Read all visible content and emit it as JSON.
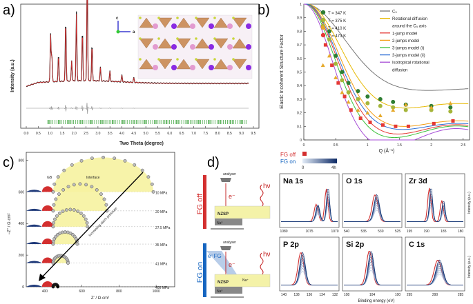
{
  "panel_a": {
    "label": "a)",
    "ylabel": "Intensity (a.u.)",
    "xlabel": "Two Theta (degree)",
    "xticks": [
      "0.0",
      "0.5",
      "1.0",
      "1.5",
      "2.0",
      "2.5",
      "3.0",
      "3.5",
      "4.0",
      "4.5",
      "5.0",
      "5.5",
      "6.0",
      "6.5",
      "7.0",
      "7.5",
      "8.0",
      "8.5",
      "9.0",
      "9.5"
    ],
    "axis_c": "c",
    "axis_a": "a"
  },
  "panel_b": {
    "label": "b)",
    "ylabel": "Elastic Incoherent Structure Factor",
    "xlabel": "Q (Å⁻¹)",
    "yticks": [
      "0",
      "0.1",
      "0.2",
      "0.3",
      "0.4",
      "0.5",
      "0.6",
      "0.7",
      "0.8",
      "0.9",
      "1"
    ],
    "xticks": [
      "0",
      "0.5",
      "1",
      "1.5",
      "2",
      "2.5"
    ],
    "temps": [
      {
        "label": "T = 347 K",
        "color": "#2e7d32"
      },
      {
        "label": "T = 375 K",
        "color": "#a5b53a"
      },
      {
        "label": "T = 410 K",
        "color": "#e6a92b"
      },
      {
        "label": "T = 473 K",
        "color": "#e53935"
      }
    ],
    "models": [
      {
        "label": "C₅",
        "color": "#777777"
      },
      {
        "label": "Rotational diffusion",
        "color": "#e6b800"
      },
      {
        "label": "around the C₅ axis",
        "color": "none"
      },
      {
        "label": "1-jump model",
        "color": "#e53935"
      },
      {
        "label": "2-jumps model",
        "color": "#f39c12"
      },
      {
        "label": "3-jumps model (i)",
        "color": "#3cc13c"
      },
      {
        "label": "3-jumps model (ii)",
        "color": "#2f6fd6"
      },
      {
        "label": "Isotropical rotational",
        "color": "#a64dd6"
      },
      {
        "label": "diffusion",
        "color": "none"
      }
    ]
  },
  "panel_c": {
    "label": "c)",
    "ylabel": "−Z'' / Ω·cm²",
    "xlabel": "Z' / Ω·cm²",
    "yticks": [
      "0",
      "200",
      "400",
      "600",
      "800"
    ],
    "xticks": [
      "400",
      "600",
      "800",
      "1000"
    ],
    "gb_label": "GB",
    "interface_label": "Interface",
    "pressures": [
      "10 MPa",
      "20 MPa",
      "27.5 MPa",
      "35 MPa",
      "41 MPa",
      "400 MPa"
    ],
    "arrow_label": "Increasing stack pressure"
  },
  "panel_d": {
    "label": "d)",
    "analyser": "analyser",
    "hv": "hν",
    "electron": "e⁻",
    "electron_fg": "e⁻FG",
    "nzsp": "NZSP",
    "na0": "Na⁰",
    "na_plus": "Na⁺",
    "fg_off": "FG off",
    "fg_on": "FG on",
    "legend_off": "FG off",
    "legend_on": "FG on",
    "legend_0": "0",
    "legend_4h": "4h",
    "intensity": "Intensity (a.u.)",
    "binding": "Binding energy (eV)",
    "spectra": [
      {
        "name": "Na 1s",
        "ticks": [
          "1080",
          "1075",
          "1070"
        ]
      },
      {
        "name": "O 1s",
        "ticks": [
          "540",
          "535",
          "530",
          "525"
        ]
      },
      {
        "name": "Zr 3d",
        "ticks": [
          "195",
          "190",
          "185",
          "180"
        ]
      },
      {
        "name": "P 2p",
        "ticks": [
          "140",
          "138",
          "136",
          "134",
          "132"
        ]
      },
      {
        "name": "Si 2p",
        "ticks": [
          "108",
          "104",
          "100"
        ]
      },
      {
        "name": "C 1s",
        "ticks": [
          "295",
          "290",
          "285"
        ]
      }
    ]
  }
}
